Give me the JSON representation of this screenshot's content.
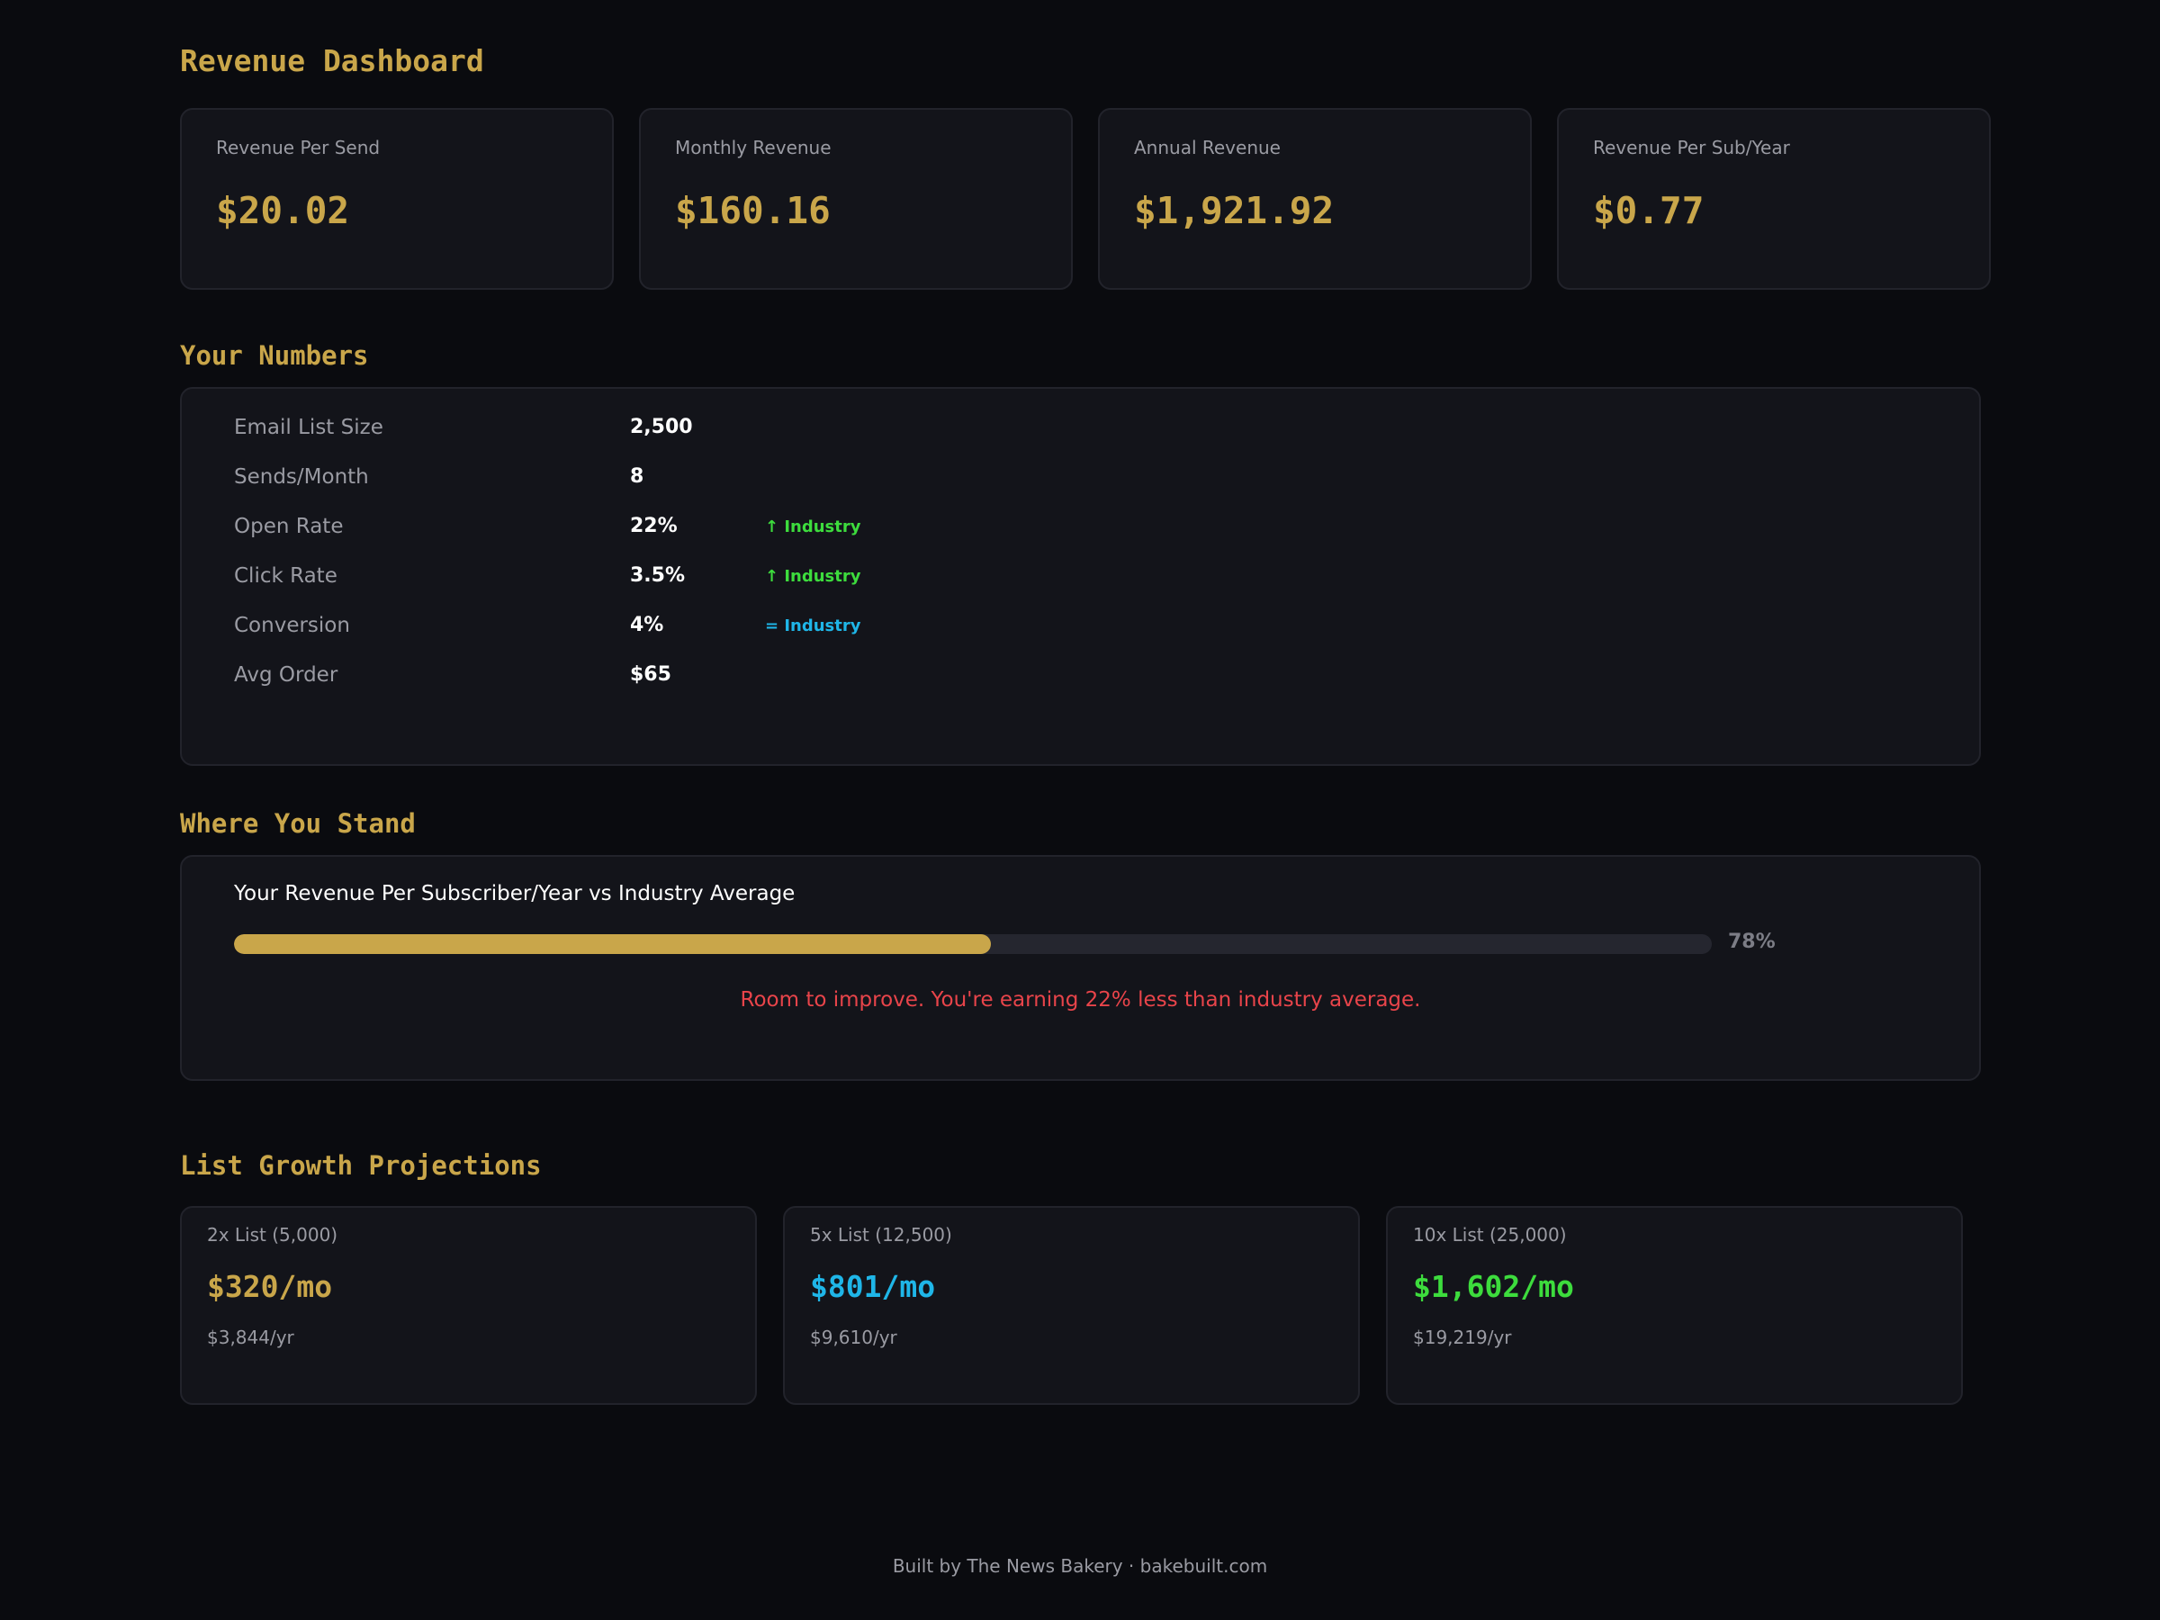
{
  "header": {
    "title": "Revenue Dashboard"
  },
  "kpis": [
    {
      "label": "Revenue Per Send",
      "value": "$20.02"
    },
    {
      "label": "Monthly Revenue",
      "value": "$160.16"
    },
    {
      "label": "Annual Revenue",
      "value": "$1,921.92"
    },
    {
      "label": "Revenue Per Sub/Year",
      "value": "$0.77"
    }
  ],
  "numbers": {
    "title": "Your Numbers",
    "rows": [
      {
        "label": "Email List Size",
        "value": "2,500",
        "comparison": ""
      },
      {
        "label": "Sends/Month",
        "value": "8",
        "comparison": ""
      },
      {
        "label": "Open Rate",
        "value": "22%",
        "comparison": "↑ Industry"
      },
      {
        "label": "Click Rate",
        "value": "3.5%",
        "comparison": "↑ Industry"
      },
      {
        "label": "Conversion",
        "value": "4%",
        "comparison": "= Industry"
      },
      {
        "label": "Avg Order",
        "value": "$65",
        "comparison": ""
      }
    ]
  },
  "stand": {
    "title": "Where You Stand",
    "bar_title": "Your Revenue Per Subscriber/Year vs Industry Average",
    "percent_label": "78%",
    "fill_fraction": 0.512,
    "message": "Room to improve. You're earning 22% less than industry average."
  },
  "projections": {
    "title": "List Growth Projections",
    "items": [
      {
        "label": "2x List (5,000)",
        "monthly": "$320/mo",
        "yearly": "$3,844/yr",
        "color": "#c9a64a"
      },
      {
        "label": "5x List (12,500)",
        "monthly": "$801/mo",
        "yearly": "$9,610/yr",
        "color": "#1fb6e8"
      },
      {
        "label": "10x List (25,000)",
        "monthly": "$1,602/mo",
        "yearly": "$19,219/yr",
        "color": "#3ddc3d"
      }
    ]
  },
  "footer": {
    "text": "Built by The News Bakery · bakebuilt.com"
  },
  "colors": {
    "accent": "#c9a64a",
    "positive": "#3ddc3d",
    "neutral": "#1fb6e8",
    "negative": "#e8444a"
  }
}
